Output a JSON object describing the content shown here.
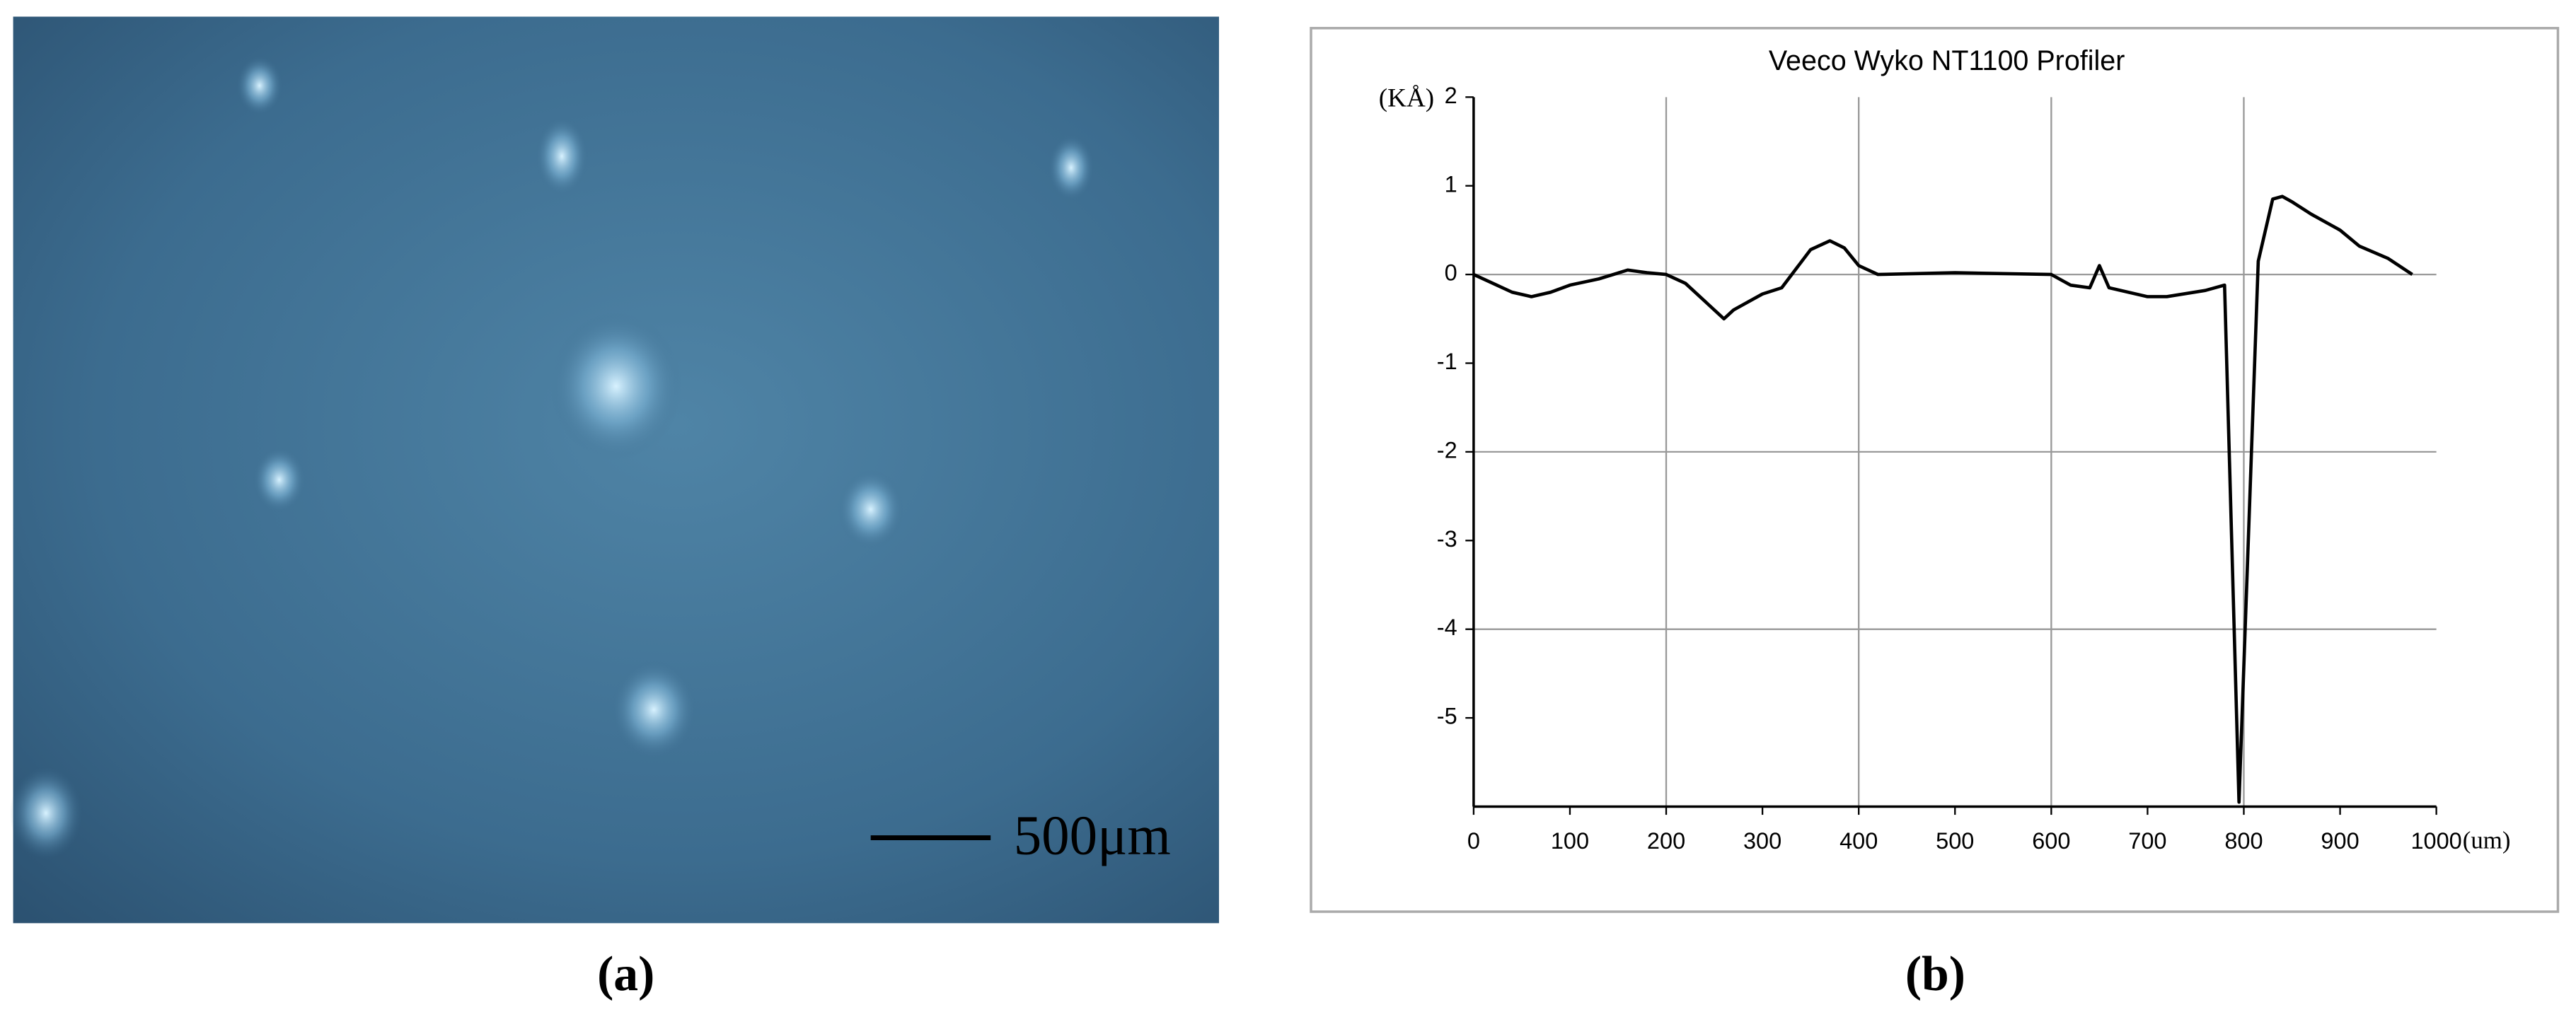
{
  "figure": {
    "panel_a_caption": "(a)",
    "scale_bar_label": "500μm",
    "panel_b_caption": "(b)"
  },
  "chart_data": {
    "type": "line",
    "title": "Veeco Wyko NT1100 Profiler",
    "ylabel": "(KÅ)",
    "xlabel": "(um)",
    "x": [
      0,
      20,
      40,
      60,
      80,
      100,
      130,
      160,
      180,
      200,
      220,
      240,
      260,
      270,
      300,
      320,
      350,
      370,
      385,
      400,
      420,
      500,
      600,
      620,
      640,
      650,
      660,
      700,
      720,
      760,
      780,
      795,
      815,
      830,
      840,
      850,
      870,
      900,
      920,
      950,
      975
    ],
    "values": [
      0,
      -0.1,
      -0.2,
      -0.25,
      -0.2,
      -0.12,
      -0.05,
      0.05,
      0.02,
      0,
      -0.1,
      -0.3,
      -0.5,
      -0.4,
      -0.22,
      -0.15,
      0.28,
      0.38,
      0.3,
      0.1,
      0,
      0.02,
      0,
      -0.12,
      -0.15,
      0.1,
      -0.15,
      -0.25,
      -0.25,
      -0.18,
      -0.12,
      -5.95,
      0.15,
      0.85,
      0.88,
      0.82,
      0.68,
      0.5,
      0.32,
      0.18,
      0
    ],
    "color": "#000000",
    "xlim": [
      0,
      1000
    ],
    "xticks": [
      0,
      100,
      200,
      300,
      400,
      500,
      600,
      700,
      800,
      900,
      1000
    ],
    "ylim": [
      -6,
      2
    ],
    "yticks": [
      2,
      1,
      0,
      -1,
      -2,
      -3,
      -4,
      -5
    ],
    "grid": true
  }
}
